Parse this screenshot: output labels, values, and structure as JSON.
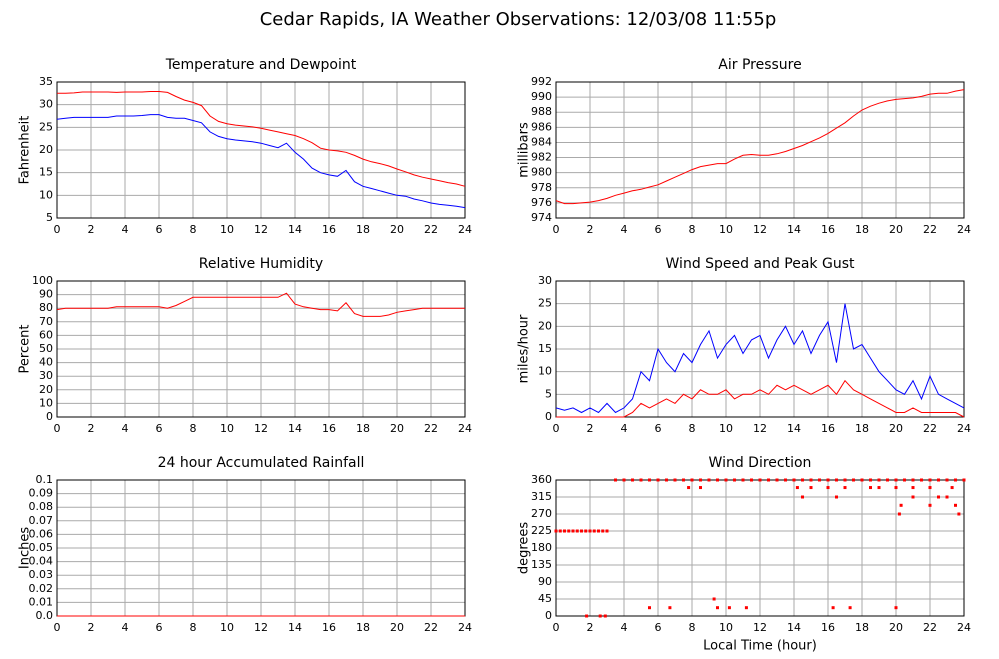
{
  "title": "Cedar Rapids, IA Weather Observations: 12/03/08 11:55p",
  "chart_data": [
    {
      "type": "line",
      "title": "Temperature and Dewpoint",
      "ylabel": "Fahrenheit",
      "x": [
        0,
        0.5,
        1,
        1.5,
        2,
        2.5,
        3,
        3.5,
        4,
        4.5,
        5,
        5.5,
        6,
        6.5,
        7,
        7.5,
        8,
        8.5,
        9,
        9.5,
        10,
        10.5,
        11,
        11.5,
        12,
        12.5,
        13,
        13.5,
        14,
        14.5,
        15,
        15.5,
        16,
        16.5,
        17,
        17.5,
        18,
        18.5,
        19,
        19.5,
        20,
        20.5,
        21,
        21.5,
        22,
        22.5,
        23,
        23.5,
        24
      ],
      "series": [
        {
          "color": "#ff0000",
          "values": [
            32.5,
            32.5,
            32.6,
            32.8,
            32.8,
            32.8,
            32.8,
            32.7,
            32.8,
            32.8,
            32.8,
            32.9,
            32.9,
            32.7,
            31.8,
            31.0,
            30.5,
            29.8,
            27.5,
            26.3,
            25.8,
            25.5,
            25.3,
            25.1,
            24.8,
            24.4,
            24.0,
            23.6,
            23.2,
            22.5,
            21.6,
            20.4,
            20.0,
            19.8,
            19.5,
            18.8,
            18.0,
            17.4,
            17.0,
            16.5,
            15.8,
            15.2,
            14.5,
            14.0,
            13.6,
            13.2,
            12.8,
            12.5,
            12.0
          ]
        },
        {
          "color": "#0000ff",
          "values": [
            26.8,
            27.0,
            27.2,
            27.2,
            27.2,
            27.2,
            27.2,
            27.5,
            27.5,
            27.5,
            27.6,
            27.8,
            27.8,
            27.2,
            27.0,
            27.0,
            26.5,
            26.0,
            24.0,
            23.0,
            22.5,
            22.2,
            22.0,
            21.8,
            21.5,
            21.0,
            20.5,
            21.5,
            19.5,
            18.0,
            16.0,
            15.0,
            14.5,
            14.2,
            15.5,
            13.0,
            12.0,
            11.5,
            11.0,
            10.5,
            10.0,
            9.8,
            9.2,
            8.8,
            8.3,
            8.0,
            7.8,
            7.6,
            7.3
          ]
        }
      ],
      "xlim": [
        0,
        24
      ],
      "xticks": [
        0,
        2,
        4,
        6,
        8,
        10,
        12,
        14,
        16,
        18,
        20,
        22,
        24
      ],
      "ylim": [
        5,
        35
      ],
      "yticks": [
        5,
        10,
        15,
        20,
        25,
        30,
        35
      ],
      "grid": true
    },
    {
      "type": "line",
      "title": "Air Pressure",
      "ylabel": "millibars",
      "x": [
        0,
        0.5,
        1,
        1.5,
        2,
        2.5,
        3,
        3.5,
        4,
        4.5,
        5,
        5.5,
        6,
        6.5,
        7,
        7.5,
        8,
        8.5,
        9,
        9.5,
        10,
        10.5,
        11,
        11.5,
        12,
        12.5,
        13,
        13.5,
        14,
        14.5,
        15,
        15.5,
        16,
        16.5,
        17,
        17.5,
        18,
        18.5,
        19,
        19.5,
        20,
        20.5,
        21,
        21.5,
        22,
        22.5,
        23,
        23.5,
        24
      ],
      "series": [
        {
          "color": "#ff0000",
          "values": [
            976.3,
            975.9,
            975.9,
            976.0,
            976.1,
            976.3,
            976.6,
            977.0,
            977.3,
            977.6,
            977.8,
            978.1,
            978.4,
            978.9,
            979.4,
            979.9,
            980.4,
            980.8,
            981.0,
            981.2,
            981.2,
            981.8,
            982.3,
            982.4,
            982.3,
            982.3,
            982.5,
            982.8,
            983.2,
            983.6,
            984.1,
            984.6,
            985.2,
            985.9,
            986.6,
            987.5,
            988.3,
            988.8,
            989.2,
            989.5,
            989.7,
            989.8,
            989.9,
            990.1,
            990.4,
            990.5,
            990.5,
            990.8,
            991.0
          ]
        }
      ],
      "xlim": [
        0,
        24
      ],
      "xticks": [
        0,
        2,
        4,
        6,
        8,
        10,
        12,
        14,
        16,
        18,
        20,
        22,
        24
      ],
      "ylim": [
        974,
        992
      ],
      "yticks": [
        974,
        976,
        978,
        980,
        982,
        984,
        986,
        988,
        990,
        992
      ],
      "grid": true
    },
    {
      "type": "line",
      "title": "Relative Humidity",
      "ylabel": "Percent",
      "x": [
        0,
        0.5,
        1,
        1.5,
        2,
        2.5,
        3,
        3.5,
        4,
        4.5,
        5,
        5.5,
        6,
        6.5,
        7,
        7.5,
        8,
        8.5,
        9,
        9.5,
        10,
        10.5,
        11,
        11.5,
        12,
        12.5,
        13,
        13.5,
        14,
        14.5,
        15,
        15.5,
        16,
        16.5,
        17,
        17.5,
        18,
        18.5,
        19,
        19.5,
        20,
        20.5,
        21,
        21.5,
        22,
        22.5,
        23,
        23.5,
        24
      ],
      "series": [
        {
          "color": "#ff0000",
          "values": [
            79,
            80,
            80,
            80,
            80,
            80,
            80,
            81,
            81,
            81,
            81,
            81,
            81,
            80,
            82,
            85,
            88,
            88,
            88,
            88,
            88,
            88,
            88,
            88,
            88,
            88,
            88,
            91,
            83,
            81,
            80,
            79,
            79,
            78,
            84,
            76,
            74,
            74,
            74,
            75,
            77,
            78,
            79,
            80,
            80,
            80,
            80,
            80,
            80
          ]
        }
      ],
      "xlim": [
        0,
        24
      ],
      "xticks": [
        0,
        2,
        4,
        6,
        8,
        10,
        12,
        14,
        16,
        18,
        20,
        22,
        24
      ],
      "ylim": [
        0,
        100
      ],
      "yticks": [
        0,
        10,
        20,
        30,
        40,
        50,
        60,
        70,
        80,
        90,
        100
      ],
      "grid": true
    },
    {
      "type": "line",
      "title": "Wind Speed and Peak Gust",
      "ylabel": "miles/hour",
      "x": [
        0,
        0.5,
        1,
        1.5,
        2,
        2.5,
        3,
        3.5,
        4,
        4.5,
        5,
        5.5,
        6,
        6.5,
        7,
        7.5,
        8,
        8.5,
        9,
        9.5,
        10,
        10.5,
        11,
        11.5,
        12,
        12.5,
        13,
        13.5,
        14,
        14.5,
        15,
        15.5,
        16,
        16.5,
        17,
        17.5,
        18,
        18.5,
        19,
        19.5,
        20,
        20.5,
        21,
        21.5,
        22,
        22.5,
        23,
        23.5,
        24
      ],
      "series": [
        {
          "color": "#0000ff",
          "values": [
            2,
            1.5,
            2,
            1,
            2,
            1,
            3,
            1,
            2,
            4,
            10,
            8,
            15,
            12,
            10,
            14,
            12,
            16,
            19,
            13,
            16,
            18,
            14,
            17,
            18,
            13,
            17,
            20,
            16,
            19,
            14,
            18,
            21,
            12,
            25,
            15,
            16,
            13,
            10,
            8,
            6,
            5,
            8,
            4,
            9,
            5,
            4,
            3,
            2
          ]
        },
        {
          "color": "#ff0000",
          "values": [
            0,
            0,
            0,
            0,
            0,
            0,
            0,
            0,
            0,
            1,
            3,
            2,
            3,
            4,
            3,
            5,
            4,
            6,
            5,
            5,
            6,
            4,
            5,
            5,
            6,
            5,
            7,
            6,
            7,
            6,
            5,
            6,
            7,
            5,
            8,
            6,
            5,
            4,
            3,
            2,
            1,
            1,
            2,
            1,
            1,
            1,
            1,
            1,
            0
          ]
        }
      ],
      "xlim": [
        0,
        24
      ],
      "xticks": [
        0,
        2,
        4,
        6,
        8,
        10,
        12,
        14,
        16,
        18,
        20,
        22,
        24
      ],
      "ylim": [
        0,
        30
      ],
      "yticks": [
        0,
        5,
        10,
        15,
        20,
        25,
        30
      ],
      "grid": true
    },
    {
      "type": "line",
      "title": "24 hour Accumulated Rainfall",
      "ylabel": "Inches",
      "x": [
        0,
        24
      ],
      "series": [
        {
          "color": "#ff0000",
          "values": [
            0,
            0
          ]
        }
      ],
      "xlim": [
        0,
        24
      ],
      "xticks": [
        0,
        2,
        4,
        6,
        8,
        10,
        12,
        14,
        16,
        18,
        20,
        22,
        24
      ],
      "ylim": [
        0,
        0.1
      ],
      "yticks": [
        {
          "value": 0,
          "label": "0.0"
        },
        0.01,
        0.02,
        0.03,
        0.04,
        0.05,
        0.06,
        0.07,
        0.08,
        0.09,
        0.1
      ],
      "grid": true
    },
    {
      "type": "scatter",
      "title": "Wind Direction",
      "ylabel": "degrees",
      "xlabel": "Local Time (hour)",
      "x": [
        0,
        0.25,
        0.5,
        0.75,
        1,
        1.25,
        1.5,
        1.75,
        2,
        2.25,
        2.5,
        2.75,
        3,
        3.5,
        4,
        4.5,
        5,
        5.5,
        6,
        6.5,
        7,
        7.5,
        8,
        8.5,
        9,
        9.5,
        10,
        10.5,
        11,
        11.5,
        12,
        12.5,
        13,
        13.5,
        14,
        14.5,
        15,
        15.5,
        16,
        16.5,
        17,
        17.5,
        18,
        18.5,
        19,
        19.5,
        20,
        20.5,
        21,
        21.5,
        22,
        22.5,
        23,
        23.5,
        24,
        7.8,
        8.5,
        14.2,
        15,
        16,
        17,
        18.5,
        19,
        20,
        21,
        22,
        23.3,
        14.5,
        16.5,
        21,
        22.5,
        23,
        20.3,
        22,
        23.5,
        20.2,
        23.7,
        5.5,
        6.7,
        9.5,
        10.2,
        11.2,
        16.3,
        17.3,
        20,
        9.3,
        1.8,
        2.6,
        2.9
      ],
      "series": [
        {
          "color": "#ff0000",
          "values": [
            225,
            225,
            225,
            225,
            225,
            225,
            225,
            225,
            225,
            225,
            225,
            225,
            225,
            360,
            360,
            360,
            360,
            360,
            360,
            360,
            360,
            360,
            360,
            360,
            360,
            360,
            360,
            360,
            360,
            360,
            360,
            360,
            360,
            360,
            360,
            360,
            360,
            360,
            360,
            360,
            360,
            360,
            360,
            360,
            360,
            360,
            360,
            360,
            360,
            360,
            360,
            360,
            360,
            360,
            360,
            340,
            340,
            340,
            340,
            340,
            340,
            340,
            340,
            340,
            340,
            340,
            340,
            315,
            315,
            315,
            315,
            315,
            293,
            293,
            293,
            270,
            270,
            22,
            22,
            22,
            22,
            22,
            22,
            22,
            22,
            45,
            0,
            0,
            0
          ]
        }
      ],
      "xlim": [
        0,
        24
      ],
      "xticks": [
        0,
        2,
        4,
        6,
        8,
        10,
        12,
        14,
        16,
        18,
        20,
        22,
        24
      ],
      "ylim": [
        0,
        360
      ],
      "yticks": [
        0,
        45,
        90,
        135,
        180,
        225,
        270,
        315,
        360
      ],
      "grid": true
    }
  ]
}
